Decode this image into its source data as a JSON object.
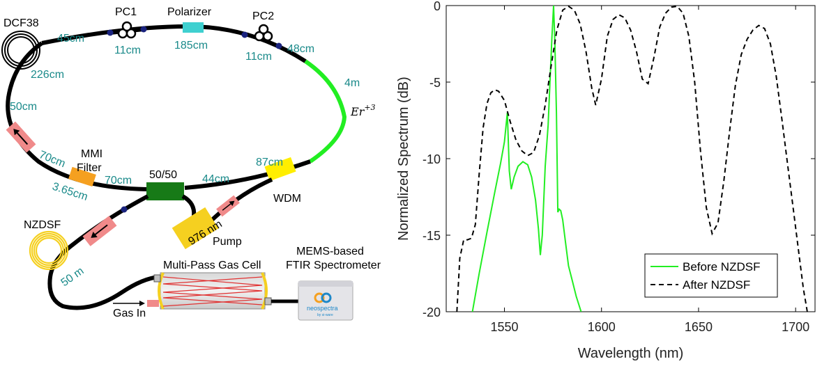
{
  "diagram": {
    "labels": {
      "dcf": "DCF38",
      "pc1": "PC1",
      "polarizer": "Polarizer",
      "pc2": "PC2",
      "len_45": "45cm",
      "len_11a": "11cm",
      "len_185": "185cm",
      "len_11b": "11cm",
      "len_48": "48cm",
      "len_226": "226cm",
      "len_4m": "4m",
      "er_base": "Er",
      "er_sup": "+3",
      "len_50": "50cm",
      "len_70a": "70cm",
      "mmi_line1": "MMI",
      "mmi_line2": "Filter",
      "len_365": "3.65cm",
      "len_70b": "70cm",
      "coupler": "50/50",
      "len_44": "44cm",
      "len_87": "87cm",
      "wdm": "WDM",
      "nzdsf": "NZDSF",
      "len_50m": "50 m",
      "pump_text": "976 nm",
      "pump": "Pump",
      "mems_line1": "MEMS-based",
      "mems_line2": "FTIR Spectrometer",
      "gas_cell": "Multi-Pass Gas Cell",
      "gas_in": "Gas In",
      "brand": "neospectra",
      "brand_sub": "by si-ware"
    },
    "colors": {
      "fiber": "#000000",
      "gain_fiber": "#22ee22",
      "label": "#1a8a8a",
      "isolator": "#f08a8a",
      "polarizer": "#3fd0d0",
      "mmi": "#f5a020",
      "coupler": "#177a17",
      "wdm": "#ffee00",
      "pump": "#f5d020",
      "nzdsf_coil": "#f5d020",
      "connector": "#1a237e",
      "laser_beam": "#e03030"
    }
  },
  "chart_data": {
    "type": "line",
    "xlabel": "Wavelength (nm)",
    "ylabel": "Normalized Spectrum (dB)",
    "xlim": [
      1520,
      1710
    ],
    "ylim": [
      -20,
      0
    ],
    "xticks": [
      1550,
      1600,
      1650,
      1700
    ],
    "yticks": [
      0,
      -5,
      -10,
      -15,
      -20
    ],
    "xtick_labels": [
      "1550",
      "1600",
      "1650",
      "1700"
    ],
    "ytick_labels": [
      "0",
      "-5",
      "-10",
      "-15",
      "-20"
    ],
    "grid": false,
    "legend": "bottom-right",
    "series": [
      {
        "name": "Before NZDSF",
        "color": "#22ee22",
        "style": "solid",
        "x": [
          1533.5,
          1537,
          1541,
          1545,
          1548,
          1550,
          1551.5,
          1552.5,
          1553.5,
          1555,
          1557,
          1559.5,
          1562,
          1564,
          1566,
          1567.5,
          1568.5,
          1569.5,
          1571,
          1572.5,
          1573.5,
          1574.5,
          1575.3,
          1576,
          1576.8,
          1577.5,
          1578.2,
          1579,
          1580,
          1581.5,
          1583,
          1585,
          1587,
          1589.5
        ],
        "y": [
          -20,
          -17.5,
          -14.8,
          -12.2,
          -10.3,
          -8.9,
          -7.0,
          -10.8,
          -12.0,
          -11.2,
          -10.5,
          -10.2,
          -10.4,
          -11.2,
          -12.7,
          -14.6,
          -16.3,
          -15.0,
          -10.5,
          -7.8,
          -4.8,
          -2.0,
          0.0,
          -2.5,
          -7.0,
          -13.5,
          -13.3,
          -13.4,
          -14.0,
          -15.5,
          -17.0,
          -18.0,
          -19.0,
          -20.0
        ]
      },
      {
        "name": "After NZDSF",
        "color": "#000000",
        "style": "dashed",
        "x": [
          1525.5,
          1527,
          1529,
          1531,
          1533,
          1535,
          1537,
          1539,
          1541,
          1543,
          1545,
          1547,
          1550,
          1553,
          1556,
          1559,
          1562,
          1565,
          1568,
          1571,
          1574,
          1577,
          1580,
          1583,
          1586,
          1589,
          1592,
          1595,
          1597,
          1600,
          1603,
          1606,
          1609,
          1612,
          1615,
          1618,
          1621,
          1624,
          1627,
          1630,
          1633,
          1636,
          1639,
          1642,
          1645,
          1648,
          1651,
          1654,
          1657,
          1660,
          1663,
          1666,
          1669,
          1672,
          1675,
          1678,
          1681,
          1684,
          1687,
          1690,
          1693,
          1696,
          1699,
          1702,
          1704,
          1706
        ],
        "y": [
          -20,
          -16.5,
          -15.3,
          -15.3,
          -15.2,
          -14.3,
          -11.0,
          -8.0,
          -6.4,
          -5.7,
          -5.5,
          -5.6,
          -6.2,
          -7.6,
          -8.8,
          -9.5,
          -9.8,
          -9.6,
          -8.5,
          -6.5,
          -4.0,
          -1.6,
          -0.3,
          -0.05,
          -0.3,
          -1.2,
          -3.0,
          -5.4,
          -6.5,
          -4.8,
          -2.0,
          -0.9,
          -0.6,
          -0.8,
          -1.6,
          -3.0,
          -4.8,
          -5.1,
          -3.4,
          -1.4,
          -0.5,
          -0.1,
          -0.05,
          -0.5,
          -2.0,
          -5.0,
          -9.5,
          -13.2,
          -14.9,
          -14.2,
          -11.5,
          -8.2,
          -5.2,
          -3.2,
          -2.2,
          -1.6,
          -1.3,
          -1.5,
          -2.5,
          -4.6,
          -7.5,
          -10.5,
          -13.5,
          -16.5,
          -18.5,
          -20.0
        ]
      }
    ]
  }
}
